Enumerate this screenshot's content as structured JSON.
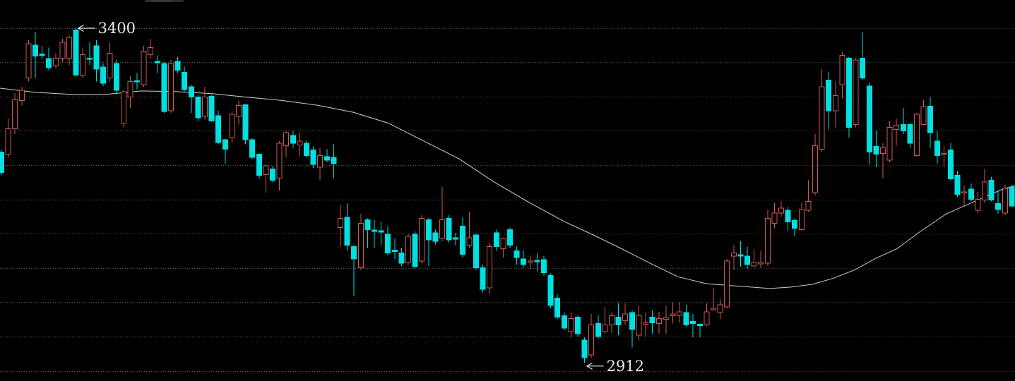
{
  "chart_data": {
    "type": "candlestick",
    "title": "",
    "xlabel": "",
    "ylabel": "",
    "grid": "dotted-horizontal",
    "legend": "none",
    "y_axis": {
      "gridline_prices": [
        3400,
        3350,
        3300,
        3250,
        3200,
        3150,
        3100,
        3050,
        3000,
        2950,
        2900
      ],
      "labels_visible": false,
      "range_top": 3442,
      "range_bottom": 2885
    },
    "annotations": [
      {
        "label": "3400",
        "candle_index": 11,
        "anchor": "high",
        "arrow_direction": "left"
      },
      {
        "label": "2912",
        "candle_index": 86,
        "anchor": "low",
        "arrow_direction": "left"
      }
    ],
    "candles_format": "[open, high, low, close] ; close>open = hollow red up candle, close<open = filled cyan down candle",
    "candles": [
      [
        3219,
        3222,
        3185,
        3189
      ],
      [
        3216,
        3268,
        3211,
        3253
      ],
      [
        3253,
        3305,
        3245,
        3295
      ],
      [
        3294,
        3314,
        3287,
        3309
      ],
      [
        3327,
        3382,
        3322,
        3377
      ],
      [
        3375,
        3394,
        3327,
        3359
      ],
      [
        3362,
        3374,
        3355,
        3360
      ],
      [
        3355,
        3371,
        3338,
        3342
      ],
      [
        3345,
        3363,
        3341,
        3356
      ],
      [
        3356,
        3384,
        3350,
        3379
      ],
      [
        3356,
        3389,
        3346,
        3386
      ],
      [
        3397,
        3400,
        3330,
        3331
      ],
      [
        3331,
        3371,
        3327,
        3361
      ],
      [
        3356,
        3379,
        3346,
        3354
      ],
      [
        3374,
        3382,
        3322,
        3340
      ],
      [
        3343,
        3348,
        3315,
        3319
      ],
      [
        3327,
        3379,
        3322,
        3363
      ],
      [
        3348,
        3353,
        3304,
        3309
      ],
      [
        3261,
        3310,
        3255,
        3307
      ],
      [
        3299,
        3330,
        3283,
        3322
      ],
      [
        3323,
        3334,
        3310,
        3321
      ],
      [
        3317,
        3374,
        3314,
        3366
      ],
      [
        3361,
        3384,
        3356,
        3371
      ],
      [
        3351,
        3360,
        3334,
        3349
      ],
      [
        3348,
        3350,
        3276,
        3278
      ],
      [
        3279,
        3353,
        3276,
        3348
      ],
      [
        3351,
        3358,
        3334,
        3338
      ],
      [
        3335,
        3344,
        3307,
        3310
      ],
      [
        3314,
        3317,
        3276,
        3299
      ],
      [
        3299,
        3302,
        3264,
        3269
      ],
      [
        3271,
        3314,
        3266,
        3299
      ],
      [
        3300,
        3302,
        3263,
        3264
      ],
      [
        3272,
        3279,
        3230,
        3233
      ],
      [
        3237,
        3238,
        3202,
        3223
      ],
      [
        3240,
        3278,
        3232,
        3274
      ],
      [
        3271,
        3294,
        3259,
        3287
      ],
      [
        3288,
        3289,
        3230,
        3237
      ],
      [
        3237,
        3239,
        3209,
        3211
      ],
      [
        3216,
        3217,
        3180,
        3185
      ],
      [
        3186,
        3201,
        3160,
        3199
      ],
      [
        3194,
        3199,
        3175,
        3178
      ],
      [
        3181,
        3235,
        3163,
        3232
      ],
      [
        3228,
        3250,
        3211,
        3247
      ],
      [
        3243,
        3250,
        3225,
        3232
      ],
      [
        3229,
        3247,
        3212,
        3235
      ],
      [
        3232,
        3236,
        3211,
        3214
      ],
      [
        3222,
        3227,
        3196,
        3201
      ],
      [
        3197,
        3225,
        3178,
        3214
      ],
      [
        3212,
        3223,
        3204,
        3207
      ],
      [
        3211,
        3230,
        3181,
        3202
      ],
      [
        3109,
        3142,
        3081,
        3122
      ],
      [
        3124,
        3144,
        3075,
        3083
      ],
      [
        3081,
        3083,
        3009,
        3063
      ],
      [
        3050,
        3129,
        3047,
        3115
      ],
      [
        3120,
        3122,
        3079,
        3106
      ],
      [
        3105,
        3120,
        3079,
        3103
      ],
      [
        3104,
        3117,
        3083,
        3102
      ],
      [
        3099,
        3111,
        3068,
        3072
      ],
      [
        3076,
        3093,
        3063,
        3074
      ],
      [
        3072,
        3079,
        3053,
        3057
      ],
      [
        3058,
        3099,
        3055,
        3096
      ],
      [
        3099,
        3103,
        3050,
        3052
      ],
      [
        3060,
        3127,
        3057,
        3122
      ],
      [
        3120,
        3123,
        3053,
        3091
      ],
      [
        3101,
        3106,
        3084,
        3089
      ],
      [
        3093,
        3168,
        3089,
        3120
      ],
      [
        3122,
        3127,
        3086,
        3091
      ],
      [
        3094,
        3101,
        3083,
        3092
      ],
      [
        3111,
        3124,
        3065,
        3070
      ],
      [
        3083,
        3132,
        3079,
        3094
      ],
      [
        3098,
        3099,
        3047,
        3050
      ],
      [
        3050,
        3055,
        3014,
        3019
      ],
      [
        3021,
        3086,
        3012,
        3081
      ],
      [
        3101,
        3106,
        3075,
        3081
      ],
      [
        3078,
        3094,
        3065,
        3093
      ],
      [
        3106,
        3109,
        3079,
        3083
      ],
      [
        3075,
        3081,
        3055,
        3065
      ],
      [
        3063,
        3075,
        3050,
        3055
      ],
      [
        3058,
        3068,
        3048,
        3060
      ],
      [
        3061,
        3072,
        3045,
        3059
      ],
      [
        3062,
        3067,
        3039,
        3043
      ],
      [
        3039,
        3042,
        2991,
        2995
      ],
      [
        3006,
        3011,
        2975,
        2978
      ],
      [
        2980,
        2985,
        2959,
        2962
      ],
      [
        2957,
        2985,
        2949,
        2976
      ],
      [
        2978,
        2981,
        2950,
        2954
      ],
      [
        2945,
        2949,
        2912,
        2919
      ],
      [
        2923,
        2983,
        2919,
        2967
      ],
      [
        2969,
        2981,
        2947,
        2950
      ],
      [
        2957,
        2993,
        2954,
        2967
      ],
      [
        2967,
        2985,
        2955,
        2980
      ],
      [
        2978,
        2998,
        2952,
        2967
      ],
      [
        2973,
        2998,
        2967,
        2983
      ],
      [
        2985,
        2988,
        2934,
        2960
      ],
      [
        2952,
        2995,
        2944,
        2981
      ],
      [
        2968,
        2985,
        2950,
        2970
      ],
      [
        2978,
        2988,
        2954,
        2970
      ],
      [
        2969,
        2986,
        2954,
        2976
      ],
      [
        2975,
        2995,
        2954,
        2977
      ],
      [
        2980,
        3000,
        2969,
        2983
      ],
      [
        2981,
        3000,
        2970,
        2986
      ],
      [
        2985,
        2996,
        2964,
        2967
      ],
      [
        2972,
        2983,
        2949,
        2969
      ],
      [
        2968,
        2969,
        2949,
        2966
      ],
      [
        2967,
        2998,
        2965,
        2986
      ],
      [
        2989,
        3021,
        2988,
        2991
      ],
      [
        2985,
        3005,
        2975,
        2996
      ],
      [
        2993,
        3063,
        2991,
        3060
      ],
      [
        3067,
        3083,
        3047,
        3072
      ],
      [
        3069,
        3089,
        3052,
        3067
      ],
      [
        3067,
        3081,
        3048,
        3055
      ],
      [
        3053,
        3078,
        3050,
        3058
      ],
      [
        3056,
        3075,
        3050,
        3058
      ],
      [
        3057,
        3135,
        3053,
        3122
      ],
      [
        3115,
        3145,
        3108,
        3130
      ],
      [
        3130,
        3147,
        3125,
        3137
      ],
      [
        3134,
        3139,
        3104,
        3117
      ],
      [
        3119,
        3122,
        3096,
        3108
      ],
      [
        3106,
        3145,
        3104,
        3135
      ],
      [
        3134,
        3178,
        3132,
        3147
      ],
      [
        3160,
        3245,
        3156,
        3228
      ],
      [
        3223,
        3340,
        3219,
        3314
      ],
      [
        3324,
        3336,
        3252,
        3279
      ],
      [
        3279,
        3322,
        3255,
        3301
      ],
      [
        3317,
        3365,
        3297,
        3360
      ],
      [
        3356,
        3358,
        3240,
        3255
      ],
      [
        3259,
        3356,
        3255,
        3353
      ],
      [
        3356,
        3394,
        3324,
        3327
      ],
      [
        3315,
        3320,
        3201,
        3219
      ],
      [
        3227,
        3250,
        3197,
        3216
      ],
      [
        3217,
        3232,
        3181,
        3225
      ],
      [
        3207,
        3264,
        3204,
        3255
      ],
      [
        3252,
        3268,
        3228,
        3258
      ],
      [
        3259,
        3283,
        3245,
        3250
      ],
      [
        3259,
        3261,
        3225,
        3232
      ],
      [
        3214,
        3276,
        3212,
        3274
      ],
      [
        3259,
        3295,
        3258,
        3285
      ],
      [
        3286,
        3299,
        3225,
        3247
      ],
      [
        3235,
        3250,
        3202,
        3214
      ],
      [
        3215,
        3227,
        3197,
        3217
      ],
      [
        3222,
        3232,
        3178,
        3180
      ],
      [
        3185,
        3191,
        3153,
        3157
      ],
      [
        3159,
        3170,
        3139,
        3161
      ],
      [
        3165,
        3173,
        3147,
        3150
      ],
      [
        3134,
        3161,
        3130,
        3150
      ],
      [
        3149,
        3194,
        3145,
        3175
      ],
      [
        3178,
        3183,
        3147,
        3149
      ],
      [
        3144,
        3163,
        3129,
        3135
      ],
      [
        3130,
        3171,
        3127,
        3166
      ],
      [
        3168,
        3171,
        3139,
        3140
      ]
    ],
    "moving_average": {
      "name": "MA",
      "points": [
        [
          0,
          3312
        ],
        [
          50,
          3306
        ],
        [
          100,
          3303
        ],
        [
          150,
          3303
        ],
        [
          200,
          3308
        ],
        [
          250,
          3307
        ],
        [
          300,
          3304
        ],
        [
          350,
          3299
        ],
        [
          400,
          3294
        ],
        [
          450,
          3287
        ],
        [
          500,
          3277
        ],
        [
          550,
          3261
        ],
        [
          600,
          3235
        ],
        [
          650,
          3209
        ],
        [
          700,
          3175
        ],
        [
          750,
          3145
        ],
        [
          800,
          3117
        ],
        [
          840,
          3098
        ],
        [
          880,
          3078
        ],
        [
          920,
          3057
        ],
        [
          960,
          3037
        ],
        [
          1000,
          3027
        ],
        [
          1050,
          3023
        ],
        [
          1090,
          3020
        ],
        [
          1120,
          3022
        ],
        [
          1150,
          3026
        ],
        [
          1180,
          3035
        ],
        [
          1210,
          3047
        ],
        [
          1240,
          3064
        ],
        [
          1270,
          3078
        ],
        [
          1300,
          3101
        ],
        [
          1340,
          3129
        ],
        [
          1380,
          3147
        ],
        [
          1420,
          3165
        ],
        [
          1437,
          3170
        ]
      ]
    }
  },
  "style": {
    "background": "#000000",
    "up_candle": {
      "type": "hollow",
      "color": "#cd5a52"
    },
    "down_candle": {
      "type": "filled",
      "color": "#00e0e0"
    },
    "ma_color": "#cfcfcf",
    "grid_color": "#8c8c8c",
    "annotation_color": "#ebebeb"
  }
}
